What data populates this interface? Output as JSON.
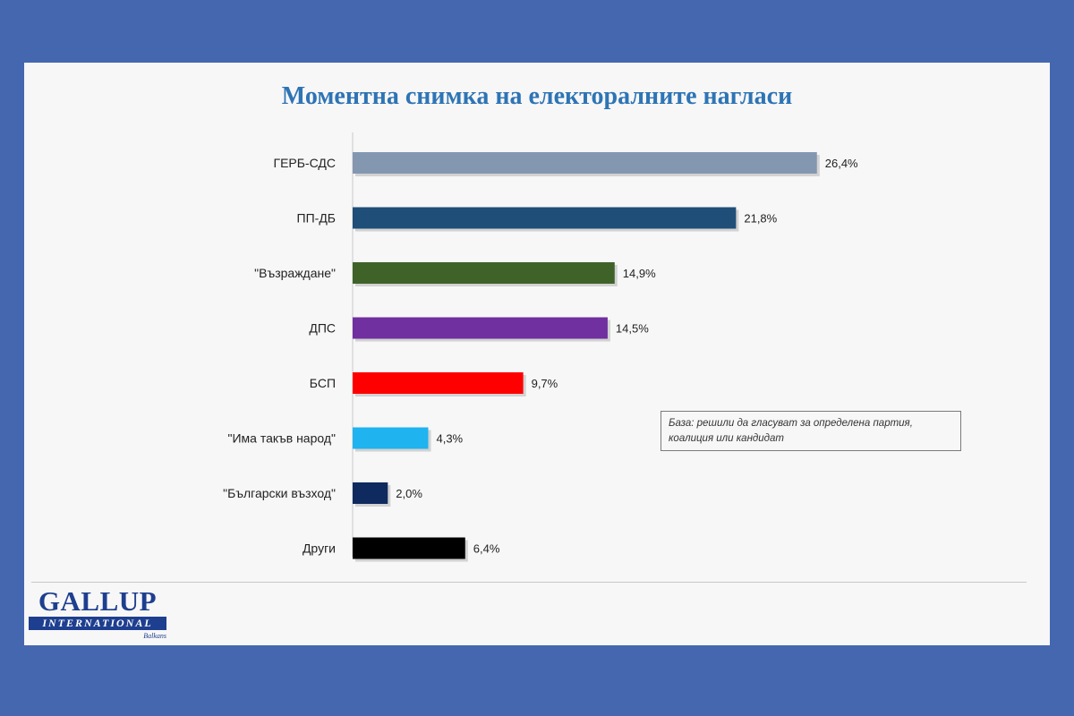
{
  "slide": {
    "title": "Моментна снимка на електоралните нагласи",
    "note": "База: решили да гласуват за определена партия, коалиция или кандидат",
    "logo": {
      "main": "GALLUP",
      "band": "INTERNATIONAL",
      "sub": "Balkans"
    }
  },
  "chart_data": {
    "type": "bar",
    "orientation": "horizontal",
    "title": "Моментна снимка на електоралните нагласи",
    "categories": [
      "ГЕРБ-СДС",
      "ПП-ДБ",
      "\"Възраждане\"",
      "ДПС",
      "БСП",
      "\"Има такъв народ\"",
      "\"Български възход\"",
      "Други"
    ],
    "values": [
      26.4,
      21.8,
      14.9,
      14.5,
      9.7,
      4.3,
      2.0,
      6.4
    ],
    "value_labels": [
      "26,4%",
      "21,8%",
      "14,9%",
      "14,5%",
      "9,7%",
      "4,3%",
      "2,0%",
      "6,4%"
    ],
    "colors": [
      "#8497b0",
      "#1f4e79",
      "#3f6229",
      "#7030a0",
      "#ff0000",
      "#1fb3f0",
      "#0f2a5e",
      "#000000"
    ],
    "xlabel": "",
    "ylabel": "",
    "grid": false,
    "legend": "none"
  }
}
